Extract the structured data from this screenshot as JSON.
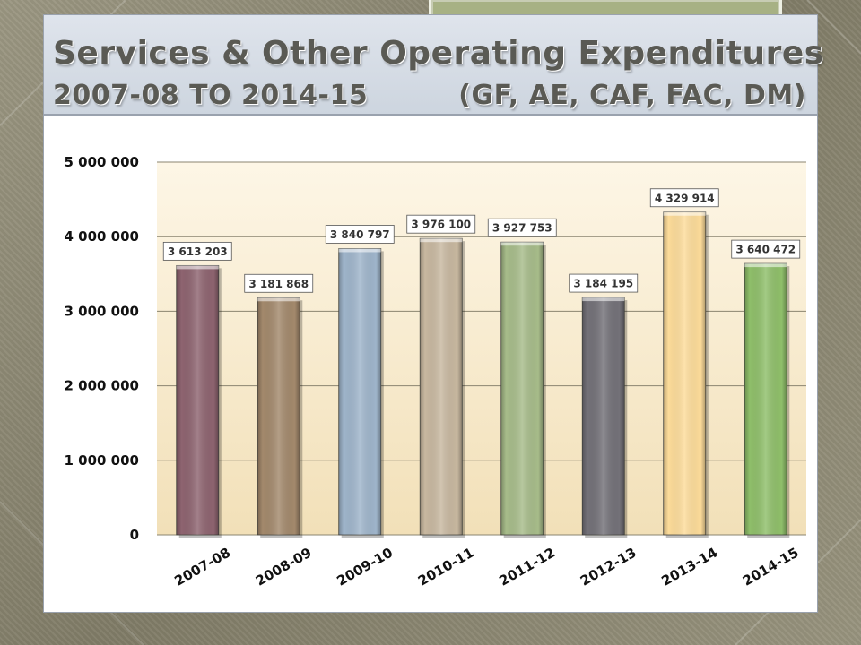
{
  "slide": {
    "title": "Services & Other Operating Expenditures",
    "subtitle_left": "2007-08 TO 2014-15",
    "subtitle_right": "(GF, AE, CAF, FAC, DM)"
  },
  "chart_data": {
    "type": "bar",
    "categories": [
      "2007-08",
      "2008-09",
      "2009-10",
      "2010-11",
      "2011-12",
      "2012-13",
      "2013-14",
      "2014-15"
    ],
    "values": [
      3613203,
      3181868,
      3840797,
      3976100,
      3927753,
      3184195,
      4329914,
      3640472
    ],
    "value_labels": [
      "3 613 203",
      "3 181 868",
      "3 840 797",
      "3 976 100",
      "3 927 753",
      "3 184 195",
      "4 329 914",
      "3 640 472"
    ],
    "bar_colors": [
      "#8e6470",
      "#a3896c",
      "#9fb5cb",
      "#c8b8a0",
      "#a7bc8a",
      "#737178",
      "#fddc9a",
      "#8fbf6a"
    ],
    "ylim": [
      0,
      5000000
    ],
    "yticks": [
      0,
      1000000,
      2000000,
      3000000,
      4000000,
      5000000
    ],
    "ytick_labels": [
      "0",
      "1 000 000",
      "2 000 000",
      "3 000 000",
      "4 000 000",
      "5 000 000"
    ],
    "xlabel": "",
    "ylabel": "",
    "grid": true,
    "plot_background": [
      "#fdf6e6",
      "#f2e0b8"
    ]
  }
}
